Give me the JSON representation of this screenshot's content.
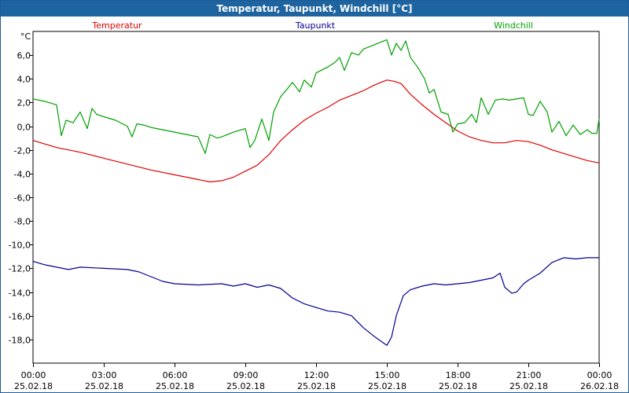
{
  "window": {
    "title": "Temperatur, Taupunkt, Windchill [°C]"
  },
  "chart_data": {
    "type": "line",
    "title": "Temperatur, Taupunkt, Windchill [°C]",
    "unit_label": "°C",
    "ylim": [
      -20,
      8
    ],
    "y_ticks": [
      "6,0",
      "4,0",
      "2,0",
      "0,0",
      "-2,0",
      "-4,0",
      "-6,0",
      "-8,0",
      "-10,0",
      "-12,0",
      "-14,0",
      "-16,0",
      "-18,0"
    ],
    "y_tick_values": [
      6,
      4,
      2,
      0,
      -2,
      -4,
      -6,
      -8,
      -10,
      -12,
      -14,
      -16,
      -18
    ],
    "xlim": [
      0,
      24
    ],
    "x_ticks": [
      {
        "time": "00:00",
        "date": "25.02.18"
      },
      {
        "time": "03:00",
        "date": "25.02.18"
      },
      {
        "time": "06:00",
        "date": "25.02.18"
      },
      {
        "time": "09:00",
        "date": "25.02.18"
      },
      {
        "time": "12:00",
        "date": "25.02.18"
      },
      {
        "time": "15:00",
        "date": "25.02.18"
      },
      {
        "time": "18:00",
        "date": "25.02.18"
      },
      {
        "time": "21:00",
        "date": "25.02.18"
      },
      {
        "time": "00:00",
        "date": "26.02.18"
      }
    ],
    "grid": true,
    "legend_position": "top",
    "series": [
      {
        "name": "Temperatur",
        "color": "#e00000",
        "x": [
          0,
          0.5,
          1,
          2,
          3,
          4,
          5,
          6,
          6.5,
          7,
          7.5,
          8,
          8.5,
          9,
          9.5,
          10,
          10.5,
          11,
          11.5,
          12,
          12.5,
          13,
          13.5,
          14,
          14.5,
          15,
          15.3,
          15.6,
          16,
          16.5,
          17,
          17.5,
          18,
          18.5,
          19,
          19.5,
          20,
          20.5,
          21,
          21.5,
          22,
          22.5,
          23,
          23.5,
          24
        ],
        "y": [
          -1.2,
          -1.5,
          -1.8,
          -2.2,
          -2.7,
          -3.2,
          -3.7,
          -4.1,
          -4.3,
          -4.5,
          -4.7,
          -4.6,
          -4.3,
          -3.8,
          -3.3,
          -2.4,
          -1.2,
          -0.3,
          0.5,
          1.1,
          1.6,
          2.2,
          2.6,
          3.0,
          3.5,
          3.9,
          3.8,
          3.6,
          2.7,
          1.8,
          1.0,
          0.3,
          -0.4,
          -0.9,
          -1.2,
          -1.4,
          -1.4,
          -1.2,
          -1.3,
          -1.6,
          -2.0,
          -2.3,
          -2.6,
          -2.9,
          -3.1
        ]
      },
      {
        "name": "Taupunkt",
        "color": "#000090",
        "x": [
          0,
          0.5,
          1,
          1.5,
          2,
          3,
          4,
          4.5,
          5,
          5.5,
          6,
          7,
          8,
          8.5,
          9,
          9.5,
          10,
          10.5,
          11,
          11.5,
          12,
          12.5,
          13,
          13.5,
          14,
          14.5,
          15,
          15.2,
          15.4,
          15.7,
          16,
          16.5,
          17,
          17.5,
          18,
          18.5,
          19,
          19.5,
          19.8,
          20,
          20.3,
          20.5,
          20.8,
          21,
          21.5,
          22,
          22.5,
          23,
          23.5,
          24
        ],
        "y": [
          -11.4,
          -11.7,
          -11.9,
          -12.1,
          -11.9,
          -12.0,
          -12.1,
          -12.3,
          -12.7,
          -13.1,
          -13.3,
          -13.4,
          -13.3,
          -13.5,
          -13.3,
          -13.6,
          -13.4,
          -13.7,
          -14.5,
          -15.0,
          -15.3,
          -15.6,
          -15.7,
          -16.0,
          -17.0,
          -17.8,
          -18.5,
          -17.8,
          -16.0,
          -14.3,
          -13.8,
          -13.5,
          -13.3,
          -13.4,
          -13.3,
          -13.2,
          -13.0,
          -12.8,
          -12.4,
          -13.6,
          -14.1,
          -14.0,
          -13.3,
          -13.0,
          -12.4,
          -11.5,
          -11.1,
          -11.2,
          -11.1,
          -11.1
        ]
      },
      {
        "name": "Windchill",
        "color": "#00a000",
        "x": [
          0,
          0.5,
          1,
          1.2,
          1.4,
          1.7,
          2,
          2.3,
          2.5,
          2.7,
          3,
          3.5,
          4,
          4.2,
          4.4,
          4.7,
          5,
          5.5,
          6,
          6.5,
          7,
          7.3,
          7.5,
          7.8,
          8,
          8.5,
          9,
          9.2,
          9.4,
          9.7,
          10,
          10.2,
          10.5,
          10.8,
          11,
          11.3,
          11.5,
          11.8,
          12,
          12.3,
          12.5,
          12.8,
          13,
          13.2,
          13.5,
          13.8,
          14,
          14.5,
          15,
          15.2,
          15.4,
          15.6,
          15.8,
          16,
          16.3,
          16.6,
          16.8,
          17,
          17.3,
          17.6,
          17.8,
          18,
          18.3,
          18.6,
          18.8,
          19,
          19.3,
          19.6,
          19.9,
          20.2,
          20.5,
          20.8,
          21,
          21.2,
          21.5,
          21.8,
          22,
          22.3,
          22.6,
          22.9,
          23.2,
          23.5,
          23.7,
          23.9,
          24
        ],
        "y": [
          2.3,
          2.1,
          1.8,
          -0.8,
          0.5,
          0.3,
          1.2,
          -0.2,
          1.5,
          1.0,
          0.8,
          0.5,
          0.0,
          -0.9,
          0.2,
          0.1,
          -0.1,
          -0.3,
          -0.5,
          -0.7,
          -0.9,
          -2.3,
          -0.7,
          -1.0,
          -0.9,
          -0.5,
          -0.2,
          -1.8,
          -1.2,
          0.6,
          -1.2,
          1.2,
          2.5,
          3.2,
          3.7,
          2.9,
          3.9,
          3.3,
          4.5,
          4.8,
          5.0,
          5.4,
          5.8,
          4.7,
          6.2,
          6.0,
          6.5,
          6.9,
          7.3,
          6.0,
          7.0,
          6.4,
          7.2,
          5.8,
          5.0,
          4.0,
          2.8,
          3.1,
          1.2,
          1.0,
          -0.5,
          0.2,
          0.3,
          1.0,
          0.3,
          2.4,
          1.0,
          2.2,
          2.3,
          2.2,
          2.3,
          2.4,
          1.0,
          0.9,
          2.1,
          1.2,
          -0.5,
          0.4,
          -0.8,
          0.1,
          -0.7,
          -0.3,
          -0.6,
          -0.6,
          0.6
        ]
      }
    ]
  }
}
